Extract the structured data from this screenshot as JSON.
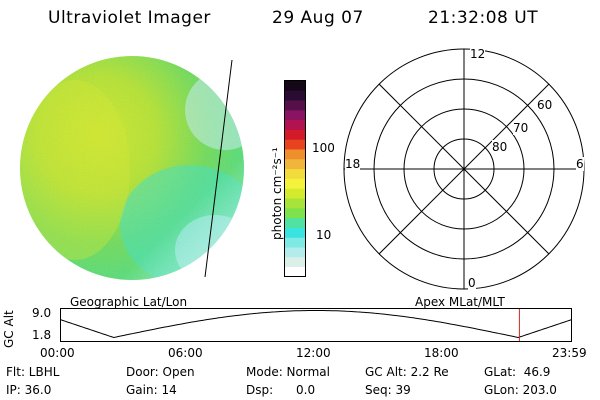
{
  "header": {
    "instrument": "Ultraviolet Imager",
    "date": "29 Aug 07",
    "time": "21:32:08 UT"
  },
  "colorbar": {
    "unit_label": "photon cm⁻²s⁻¹",
    "tick_100": "100",
    "tick_10": "10",
    "colors": [
      "#ffffff",
      "#dcefe9",
      "#b3ecea",
      "#7fe9e4",
      "#38e3e0",
      "#4fe2a1",
      "#7fe24c",
      "#a8e33a",
      "#d4ea2c",
      "#f5f23c",
      "#f2dc3c",
      "#f0b53a",
      "#ef8f2c",
      "#e8431f",
      "#d21a2b",
      "#b2124f",
      "#8b1363",
      "#55104a",
      "#2a0b32",
      "#130718"
    ]
  },
  "polar_grid": {
    "label_12": "12",
    "label_18": "18",
    "label_6": "6",
    "label_0": "0",
    "label_60": "60",
    "label_70": "70",
    "label_80": "80"
  },
  "timeline": {
    "left_label": "Geographic Lat/Lon",
    "right_label": "Apex MLat/MLT",
    "y_axis_label": "GC Alt",
    "y_max": "9.0",
    "y_min": "1.8",
    "x_ticks": [
      "00:00",
      "06:00",
      "12:00",
      "18:00",
      "23:59"
    ],
    "current_marker_color": "#cc2a1d"
  },
  "info": {
    "filter": "Flt: LBHL",
    "ip": "IP: 36.0",
    "door": "Door: Open",
    "gain": "Gain: 14",
    "mode": "Mode: Normal",
    "dsp": "Dsp:      0.0",
    "gc_alt": "GC Alt: 2.2 Re",
    "seq": "Seq: 39",
    "glat": "GLat:  46.9",
    "glon": "GLon: 203.0"
  }
}
